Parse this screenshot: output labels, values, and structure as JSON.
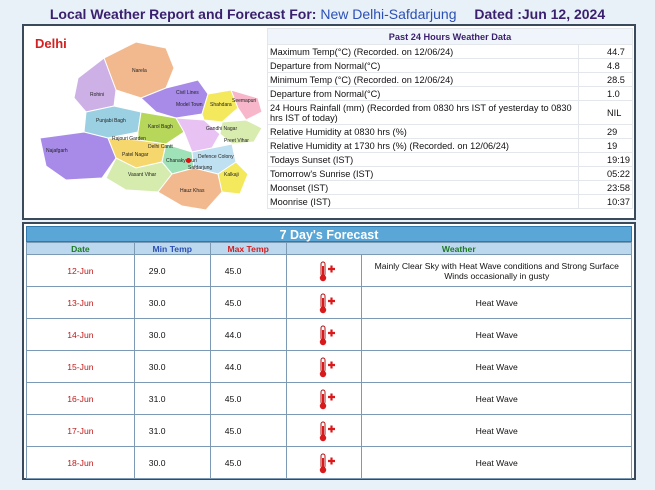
{
  "header": {
    "prefix": "Local Weather Report and Forecast For:",
    "location": "New Delhi-Safdarjung",
    "dated": "Dated :Jun 12, 2024"
  },
  "map": {
    "title": "Delhi",
    "districts": [
      "Narela",
      "Rohini",
      "Shahdara",
      "Model Town",
      "Seemapuri",
      "Punjabi Bagh",
      "Gandhi Nagar",
      "Najafgarh",
      "Rajouri Garden",
      "Patel Nagar",
      "Delhi Cantt",
      "Chanakyapuri",
      "Defence Colony",
      "Vasant Vihar",
      "Safdarjung",
      "Kalkaji",
      "Hauz Khas",
      "Preet Vihar",
      "Civil Lines",
      "Karol Bagh",
      "Daryaganj",
      "Kotwali",
      "Preet Vihar",
      "Vivek Vihar"
    ]
  },
  "past24": {
    "heading": "Past 24 Hours Weather Data",
    "rows": [
      {
        "label": "Maximum Temp(°C) (Recorded. on 12/06/24)",
        "value": "44.7"
      },
      {
        "label": "Departure from Normal(°C)",
        "value": "4.8"
      },
      {
        "label": "Minimum Temp (°C) (Recorded. on 12/06/24)",
        "value": "28.5"
      },
      {
        "label": "Departure from Normal(°C)",
        "value": "1.0"
      },
      {
        "label": "24 Hours Rainfall (mm) (Recorded from 0830 hrs IST of yesterday to 0830 hrs IST of today)",
        "value": "NIL"
      },
      {
        "label": "Relative Humidity at 0830 hrs (%)",
        "value": "29"
      },
      {
        "label": "Relative Humidity at 1730 hrs (%) (Recorded. on 12/06/24)",
        "value": "19"
      },
      {
        "label": "Todays Sunset (IST)",
        "value": "19:19"
      },
      {
        "label": "Tomorrow's Sunrise (IST)",
        "value": "05:22"
      },
      {
        "label": "Moonset (IST)",
        "value": "23:58"
      },
      {
        "label": "Moonrise (IST)",
        "value": "10:37"
      }
    ]
  },
  "forecast": {
    "title": "7 Day's Forecast",
    "columns": {
      "date": "Date",
      "min": "Min Temp",
      "max": "Max Temp",
      "weather": "Weather"
    },
    "rows": [
      {
        "date": "12-Jun",
        "min": "29.0",
        "max": "45.0",
        "icon": "heat-wave-icon",
        "weather": "Mainly Clear Sky with Heat Wave conditions and Strong Surface Winds occasionally in gusty"
      },
      {
        "date": "13-Jun",
        "min": "30.0",
        "max": "45.0",
        "icon": "heat-wave-icon",
        "weather": "Heat Wave"
      },
      {
        "date": "14-Jun",
        "min": "30.0",
        "max": "44.0",
        "icon": "heat-wave-icon",
        "weather": "Heat Wave"
      },
      {
        "date": "15-Jun",
        "min": "30.0",
        "max": "44.0",
        "icon": "heat-wave-icon",
        "weather": "Heat Wave"
      },
      {
        "date": "16-Jun",
        "min": "31.0",
        "max": "45.0",
        "icon": "heat-wave-icon",
        "weather": "Heat Wave"
      },
      {
        "date": "17-Jun",
        "min": "31.0",
        "max": "45.0",
        "icon": "heat-wave-icon",
        "weather": "Heat Wave"
      },
      {
        "date": "18-Jun",
        "min": "30.0",
        "max": "45.0",
        "icon": "heat-wave-icon",
        "weather": "Heat Wave"
      }
    ]
  },
  "colors": {
    "title": "#3a1f6e",
    "location": "#2b4fb5",
    "forecast_bar": "#5aa6d6",
    "date_text": "#c01818"
  }
}
